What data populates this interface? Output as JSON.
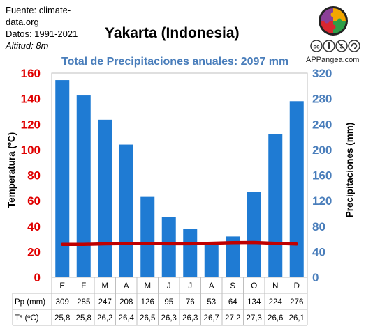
{
  "source": {
    "line1": "Fuente: climate-",
    "line2": "data.org",
    "line3": "Datos: 1991-2021",
    "line4": "Altitud: 8m"
  },
  "title": "Yakarta (Indonesia)",
  "subtitle": "Total de Precipitaciones anuales: 2097 mm",
  "brand": {
    "name": "APPangea.com",
    "logo_icon": "puzzle-globe-icon",
    "license_icons": [
      "cc-icon",
      "attribution-icon",
      "noncommercial-icon",
      "sharealike-icon"
    ]
  },
  "chart_data": {
    "type": "bar",
    "categories": [
      "E",
      "F",
      "M",
      "A",
      "M",
      "J",
      "J",
      "A",
      "S",
      "O",
      "N",
      "D"
    ],
    "series": [
      {
        "name": "Pp (mm)",
        "type": "bar",
        "axis": "right",
        "color": "#1f7bd3",
        "values": [
          309,
          285,
          247,
          208,
          126,
          95,
          76,
          53,
          64,
          134,
          224,
          276
        ]
      },
      {
        "name": "Tª (ºC)",
        "type": "line",
        "axis": "left",
        "color": "#c00000",
        "values": [
          25.8,
          25.8,
          26.2,
          26.4,
          26.5,
          26.3,
          26.3,
          26.7,
          27.2,
          27.3,
          26.6,
          26.1
        ]
      }
    ],
    "ylabel_left": "Temperatura (ºC)",
    "ylabel_right": "Precipitaciones (mm)",
    "ylim_left": [
      0,
      160
    ],
    "ylim_right": [
      0,
      320
    ],
    "yticks_left": [
      "0",
      "20",
      "40",
      "60",
      "80",
      "100",
      "120",
      "140",
      "160"
    ],
    "yticks_right": [
      "0",
      "40",
      "80",
      "120",
      "160",
      "200",
      "240",
      "280",
      "320"
    ],
    "left_axis_color": "#e00000",
    "right_axis_color": "#4a7ebb",
    "table": {
      "rows": [
        {
          "label": "Pp (mm)",
          "values": [
            "309",
            "285",
            "247",
            "208",
            "126",
            "95",
            "76",
            "53",
            "64",
            "134",
            "224",
            "276"
          ]
        },
        {
          "label": "Tª (ºC)",
          "values": [
            "25,8",
            "25,8",
            "26,2",
            "26,4",
            "26,5",
            "26,3",
            "26,3",
            "26,7",
            "27,2",
            "27,3",
            "26,6",
            "26,1"
          ]
        }
      ]
    },
    "grid": false
  }
}
